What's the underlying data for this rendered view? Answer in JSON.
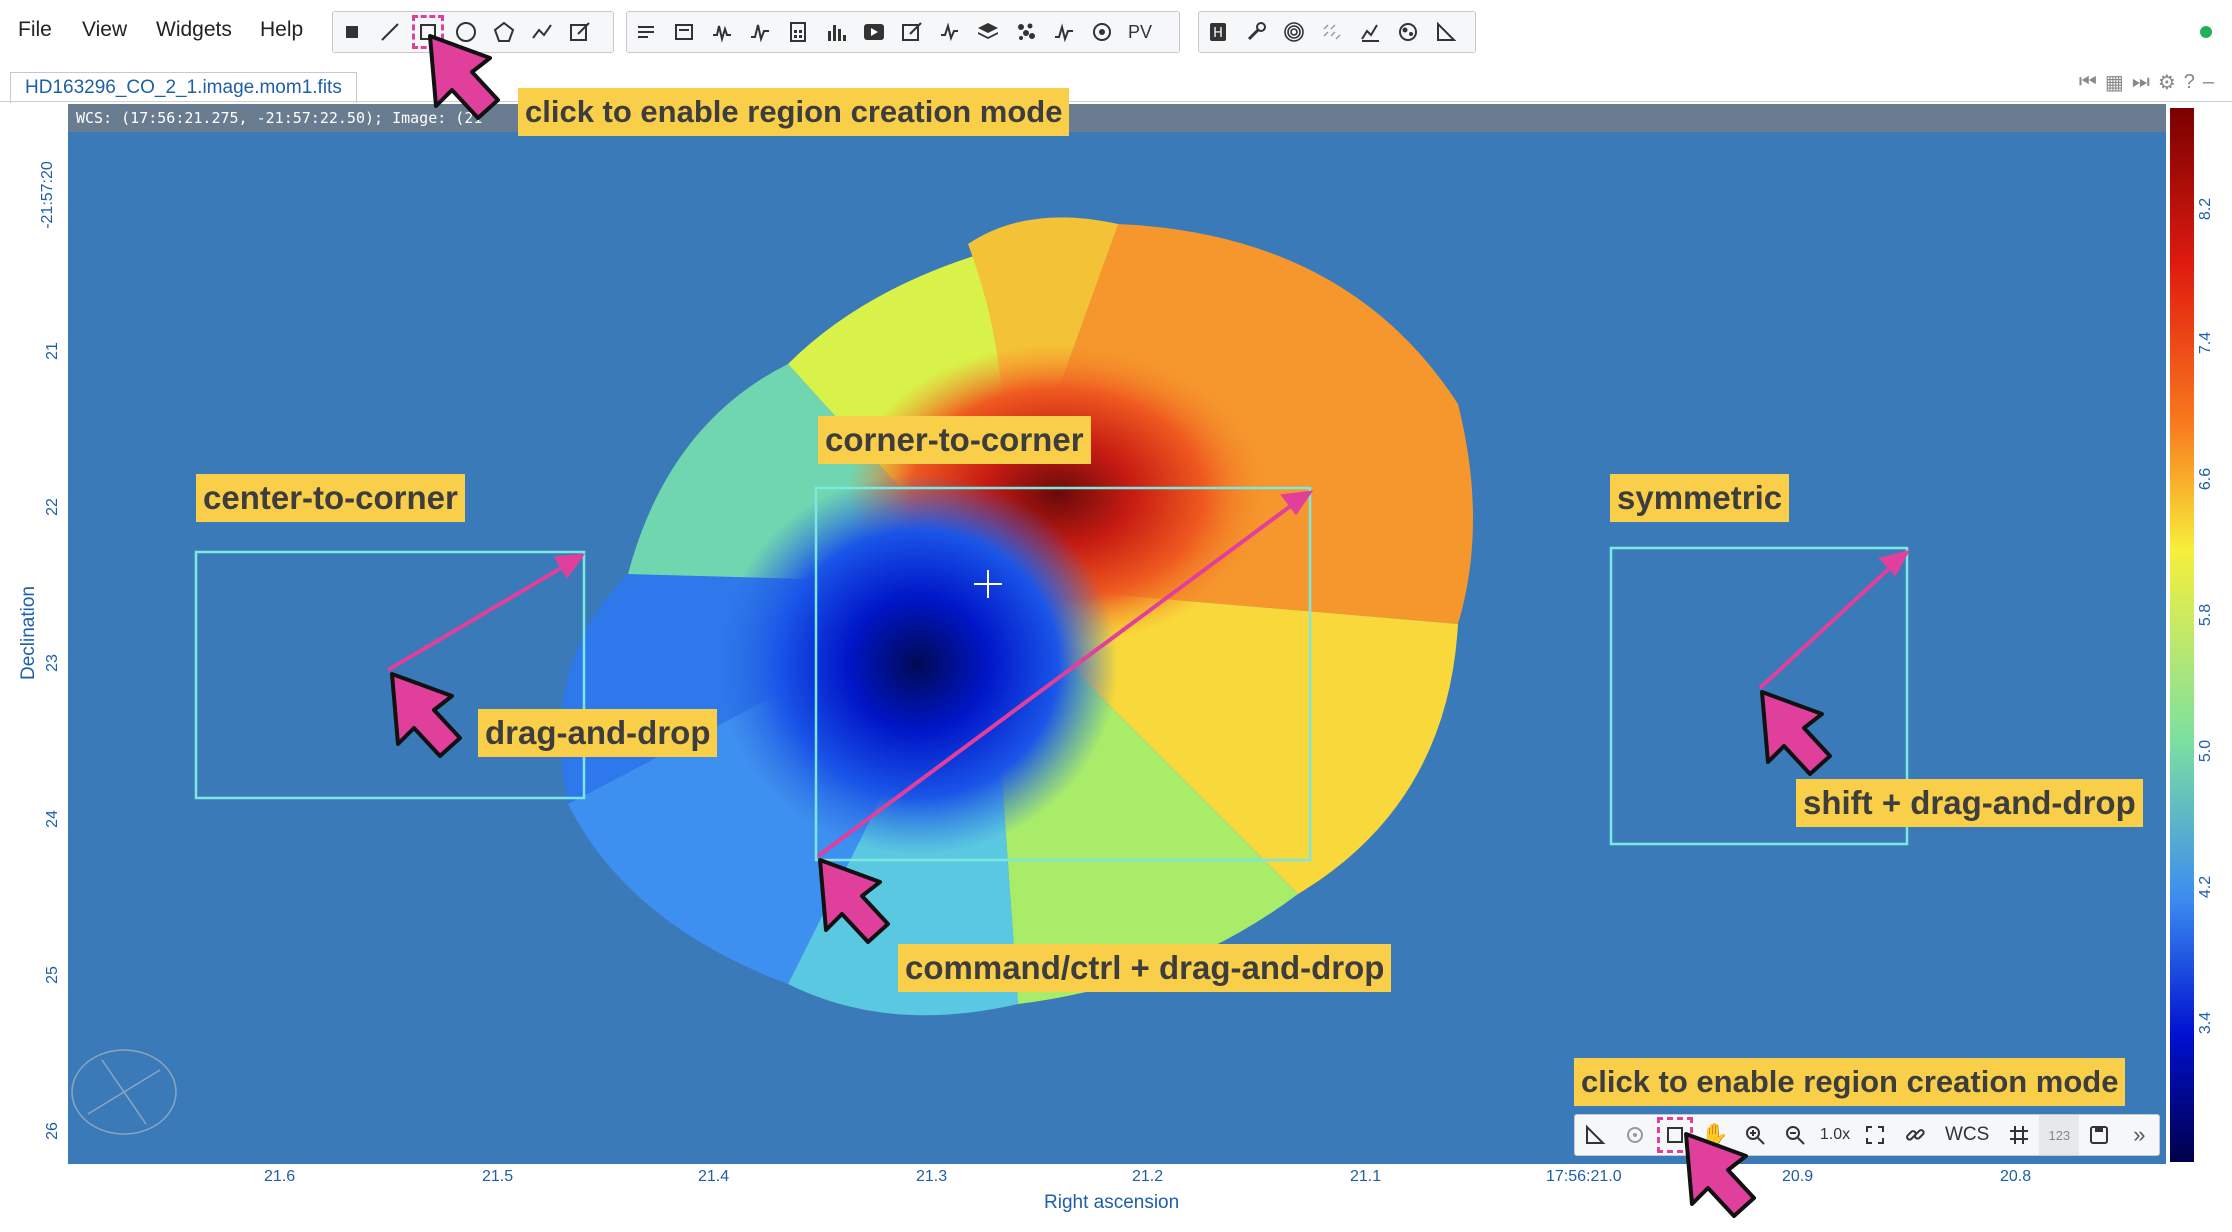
{
  "menu": [
    "File",
    "View",
    "Widgets",
    "Help"
  ],
  "toolbar": {
    "region_tools": [
      "point-icon",
      "line-icon",
      "rectangle-icon",
      "ellipse-icon",
      "polygon-icon",
      "polyline-icon",
      "annotation-edit-icon"
    ],
    "selected_tool": "rectangle-icon",
    "pv_label": "PV"
  },
  "tab": {
    "label": "HD163296_CO_2_1.image.mom1.fits"
  },
  "cursor_info": "WCS: (17:56:21.275, -21:57:22.50); Image: (21",
  "axes": {
    "xlabel": "Right ascension",
    "ylabel": "Declination",
    "xticks": [
      "21.6",
      "21.5",
      "21.4",
      "21.3",
      "21.2",
      "21.1",
      "17:56:21.0",
      "20.9",
      "20.8"
    ],
    "yticks": [
      "-21:57:20",
      "21",
      "22",
      "23",
      "24",
      "25",
      "26"
    ],
    "colorbar_ticks": [
      "8.2",
      "7.4",
      "6.6",
      "5.8",
      "5.0",
      "4.2",
      "3.4"
    ]
  },
  "callouts": {
    "top_mode": "click to enable region creation mode",
    "corner_to_corner": "corner-to-corner",
    "center_to_corner": "center-to-corner",
    "symmetric": "symmetric",
    "drag": "drag-and-drop",
    "command_drag": "command/ctrl + drag-and-drop",
    "shift_drag": "shift + drag-and-drop",
    "bottom_mode": "click to enable region creation mode"
  },
  "image_toolbar": {
    "zoom_level": "1.0x",
    "wcs_label": "WCS",
    "pixel_label": "123"
  },
  "colors": {
    "accent_pink": "#e0409b",
    "callout_yellow": "#f9cf4a",
    "region_cyan": "#7de8e0",
    "background_blue": "#3a7ab8"
  }
}
